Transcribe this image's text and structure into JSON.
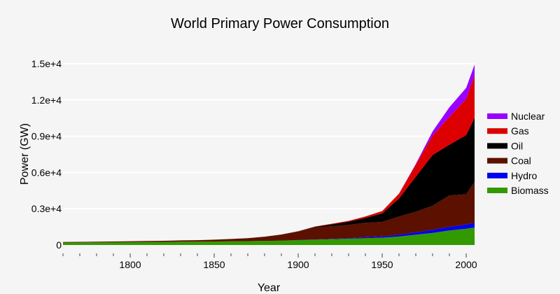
{
  "chart_data": {
    "type": "area",
    "stacked": true,
    "title": "World Primary Power Consumption",
    "xlabel": "Year",
    "ylabel": "Power (GW)",
    "xlim": [
      1760,
      2005
    ],
    "ylim": [
      0,
      15000
    ],
    "x_ticks": [
      1800,
      1850,
      1900,
      1950,
      2000
    ],
    "x_minor_step": 10,
    "y_ticks": [
      0,
      3000,
      6000,
      9000,
      12000,
      15000
    ],
    "y_tick_labels": [
      "0",
      "0.3e+4",
      "0.6e+4",
      "0.9e+4",
      "1.2e+4",
      "1.5e+4"
    ],
    "grid": true,
    "legend_position": "right",
    "x": [
      1760,
      1770,
      1780,
      1790,
      1800,
      1810,
      1820,
      1830,
      1840,
      1850,
      1860,
      1870,
      1880,
      1890,
      1900,
      1910,
      1920,
      1930,
      1940,
      1950,
      1960,
      1970,
      1980,
      1990,
      2000,
      2005
    ],
    "series": [
      {
        "name": "Biomass",
        "color": "#339900",
        "values": [
          200,
          210,
          220,
          230,
          240,
          250,
          260,
          270,
          280,
          290,
          300,
          320,
          340,
          360,
          400,
          440,
          480,
          520,
          560,
          600,
          700,
          850,
          1000,
          1200,
          1350,
          1450
        ]
      },
      {
        "name": "Hydro",
        "color": "#0000ee",
        "values": [
          0,
          0,
          0,
          0,
          0,
          0,
          0,
          0,
          0,
          0,
          0,
          0,
          0,
          0,
          10,
          20,
          30,
          50,
          80,
          110,
          150,
          200,
          250,
          300,
          350,
          380
        ]
      },
      {
        "name": "Coal",
        "color": "#5c1000",
        "values": [
          50,
          50,
          60,
          60,
          70,
          80,
          90,
          110,
          120,
          150,
          200,
          250,
          350,
          500,
          700,
          1000,
          1050,
          1100,
          1200,
          1200,
          1500,
          1700,
          2000,
          2600,
          2500,
          3400
        ]
      },
      {
        "name": "Oil",
        "color": "#000000",
        "values": [
          0,
          0,
          0,
          0,
          0,
          0,
          0,
          0,
          0,
          0,
          0,
          0,
          0,
          10,
          20,
          50,
          150,
          250,
          400,
          700,
          1500,
          2900,
          4200,
          4200,
          4900,
          5300
        ]
      },
      {
        "name": "Gas",
        "color": "#dd0000",
        "values": [
          0,
          0,
          0,
          0,
          0,
          0,
          0,
          0,
          0,
          0,
          0,
          0,
          0,
          0,
          10,
          20,
          50,
          80,
          120,
          200,
          400,
          1000,
          1600,
          2300,
          3000,
          3500
        ]
      },
      {
        "name": "Nuclear",
        "color": "#9900ff",
        "values": [
          0,
          0,
          0,
          0,
          0,
          0,
          0,
          0,
          0,
          0,
          0,
          0,
          0,
          0,
          0,
          0,
          0,
          0,
          0,
          0,
          0,
          50,
          350,
          800,
          900,
          900
        ]
      }
    ]
  }
}
